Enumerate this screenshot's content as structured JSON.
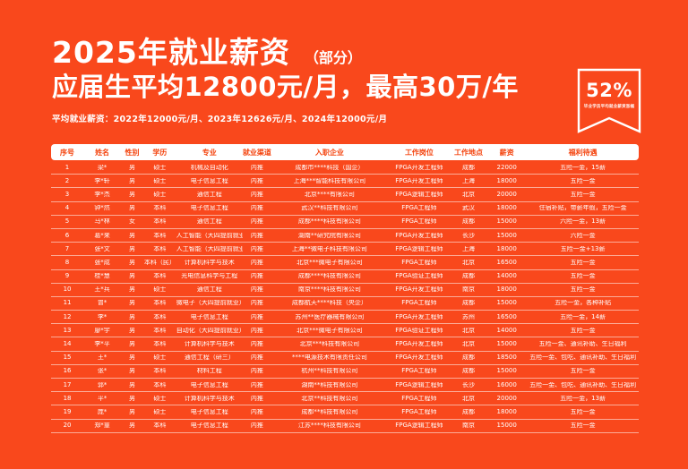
{
  "page": {
    "background_color": "#F9481C",
    "text_color": "#FFFFFF",
    "header_bar_color": "#FFFFFF",
    "header_text_color": "#F4430D"
  },
  "header": {
    "title": "2025年就业薪资",
    "title_suffix": "（部分）",
    "headline": "应届生平均12800元/月，最高30万/年",
    "note": "平均就业薪资：2022年12000元/月、2023年12626元/月、2024年12000元/月"
  },
  "badge": {
    "value": "52%",
    "caption": "毕业学员平均就业薪资涨幅"
  },
  "table": {
    "columns": [
      "序号",
      "姓名",
      "性别",
      "学历",
      "专业",
      "就业渠道",
      "入职企业",
      "工作岗位",
      "工作地点",
      "薪资",
      "福利待遇"
    ],
    "rows": [
      [
        "1",
        "梁*",
        "男",
        "硕士",
        "机械及自动化",
        "内推",
        "成都市****科技（国企）",
        "FPGA开发工程师",
        "成都",
        "22000",
        "五险一金，15薪"
      ],
      [
        "2",
        "李*轩",
        "男",
        "硕士",
        "电子信息工程",
        "内推",
        "上海***智能科技有限公司",
        "FPGA开发工程师",
        "上海",
        "18000",
        "五险一金"
      ],
      [
        "3",
        "李*杰",
        "男",
        "硕士",
        "通信工程",
        "内推",
        "北京****有限公司",
        "FPGA逻辑工程师",
        "北京",
        "20000",
        "五险一金"
      ],
      [
        "4",
        "钟*然",
        "男",
        "本科",
        "电子信息工程",
        "内推",
        "武汉**科技有限公司",
        "FPGA工程师",
        "武汉",
        "18000",
        "住宿补贴，带薪年假，五险一金"
      ],
      [
        "5",
        "马*林",
        "女",
        "本科",
        "通信工程",
        "内推",
        "成都****科技有限公司",
        "FPGA工程师",
        "成都",
        "15000",
        "六险一金，13薪"
      ],
      [
        "6",
        "葛*来",
        "男",
        "本科",
        "人工智能（大四提前就业）",
        "内推",
        "湖南**研究院有限公司",
        "FPGA开发工程师",
        "长沙",
        "15000",
        "六险一金"
      ],
      [
        "7",
        "张*文",
        "男",
        "本科",
        "人工智能（大四提前就业）",
        "内推",
        "上海**微电子科技有限公司",
        "FPGA逻辑工程师",
        "上海",
        "18000",
        "五险一金+13薪"
      ],
      [
        "8",
        "张*成",
        "男",
        "本科（民）",
        "计算机科学与技术",
        "内推",
        "北京***微电子有限公司",
        "FPGA工程师",
        "北京",
        "16500",
        "五险一金"
      ],
      [
        "9",
        "桂*慧",
        "男",
        "本科",
        "光电信息科学与工程",
        "内推",
        "成都****科技有限公司",
        "FPGA验证工程师",
        "成都",
        "14000",
        "五险一金"
      ],
      [
        "10",
        "王*兵",
        "男",
        "硕士",
        "通信工程",
        "内推",
        "南京****科技有限公司",
        "FPGA开发工程师",
        "南京",
        "18000",
        "五险一金"
      ],
      [
        "11",
        "曾*",
        "男",
        "本科",
        "微电子（大四提前就业）",
        "内推",
        "成都航天****科技（央企）",
        "FPGA工程师",
        "成都",
        "15000",
        "五险一金，各种补贴"
      ],
      [
        "12",
        "李*",
        "男",
        "本科",
        "电子信息工程",
        "内推",
        "苏州**医疗器械有限公司",
        "FPGA开发工程师",
        "苏州",
        "16500",
        "五险一金，14薪"
      ],
      [
        "13",
        "廖*宇",
        "男",
        "本科",
        "自动化（大四提前就业）",
        "内推",
        "北京***微电子有限公司",
        "FPGA验证工程师",
        "北京",
        "14000",
        "五险一金"
      ],
      [
        "14",
        "李*平",
        "男",
        "本科",
        "计算机科学与技术",
        "内推",
        "北京***科技有限公司",
        "FPGA开发工程师",
        "北京",
        "15000",
        "五险一金、通讯补助、生日福利"
      ],
      [
        "15",
        "王*",
        "男",
        "硕士",
        "通信工程（研三）",
        "内推",
        "****电源技术有限责任公司",
        "FPGA开发工程师",
        "成都",
        "18500",
        "五险一金、包吃、通讯补助、生日福利"
      ],
      [
        "16",
        "张*",
        "男",
        "本科",
        "材料工程",
        "内推",
        "杭州**科技有限公司",
        "FPGA工程师",
        "成都",
        "15000",
        "五险一金"
      ],
      [
        "17",
        "郭*",
        "男",
        "本科",
        "电子信息工程",
        "内推",
        "湖南**科技有限公司",
        "FPGA逻辑工程师",
        "长沙",
        "16000",
        "五险一金、包吃、通讯补助、生日福利"
      ],
      [
        "18",
        "平*",
        "男",
        "硕士",
        "计算机科学与技术",
        "内推",
        "北京**科技有限公司",
        "FPGA工程师",
        "北京",
        "20000",
        "五险一金，13薪"
      ],
      [
        "19",
        "庞*",
        "男",
        "硕士",
        "电子信息工程",
        "内推",
        "成都**科技有限公司",
        "FPGA工程师",
        "成都",
        "18000",
        "五险一金"
      ],
      [
        "20",
        "郑*童",
        "男",
        "本科",
        "电子信息工程",
        "内推",
        "江苏****科技有限公司",
        "FPGA逻辑工程师",
        "南京",
        "15000",
        "五险一金"
      ]
    ]
  }
}
